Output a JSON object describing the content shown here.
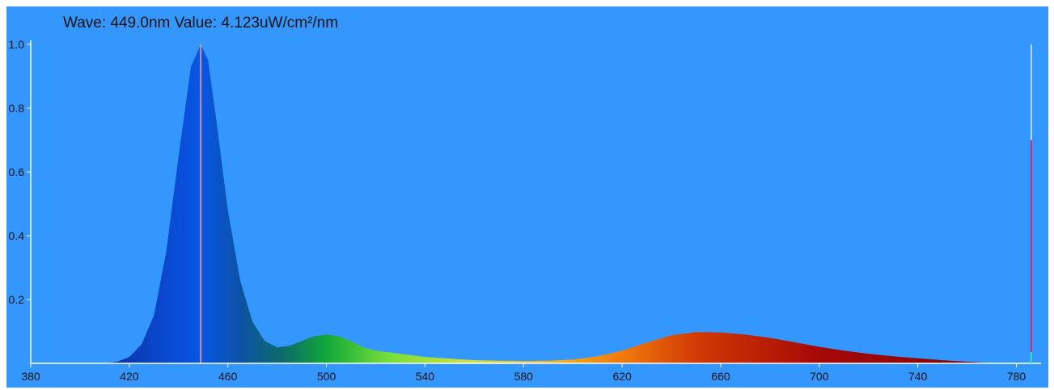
{
  "readout": {
    "wave_label": "Wave:",
    "wave_value": "449.0nm",
    "value_label": "Value:",
    "value_value": "4.123uW/cm²/nm"
  },
  "cursor": {
    "wavelength": 449
  },
  "marker": {
    "wavelength": 786,
    "level": 0.7
  },
  "colors": {
    "background": "#3497fd",
    "cursor": "#f4a98a",
    "marker_top": "#e6e9ee",
    "marker_bottom": "#d8266e"
  },
  "chart_data": {
    "type": "area",
    "title": "",
    "xlabel": "",
    "ylabel": "",
    "xlim": [
      380,
      790
    ],
    "ylim": [
      0,
      1.0
    ],
    "x_ticks": [
      380,
      420,
      460,
      500,
      540,
      580,
      620,
      660,
      700,
      740,
      780
    ],
    "y_ticks": [
      0.2,
      0.4,
      0.6,
      0.8,
      1.0
    ],
    "y_tick_labels": [
      "0.2",
      "0.4",
      "0.6",
      "0.8",
      "1.0"
    ],
    "grid": false,
    "legend": "none",
    "series": [
      {
        "x": [
          410,
          415,
          420,
          425,
          430,
          435,
          440,
          445,
          449,
          452,
          455,
          460,
          465,
          470,
          475,
          480,
          485,
          490,
          495,
          500,
          505,
          510,
          515,
          520,
          530,
          540,
          550,
          560,
          570,
          580,
          590,
          600,
          610,
          620,
          630,
          640,
          650,
          660,
          670,
          680,
          690,
          700,
          710,
          720,
          730,
          740,
          750,
          760,
          770
        ],
        "y": [
          0,
          0.005,
          0.02,
          0.06,
          0.15,
          0.35,
          0.65,
          0.93,
          1.0,
          0.95,
          0.78,
          0.48,
          0.26,
          0.13,
          0.07,
          0.05,
          0.055,
          0.07,
          0.085,
          0.09,
          0.085,
          0.07,
          0.05,
          0.04,
          0.03,
          0.02,
          0.015,
          0.01,
          0.008,
          0.007,
          0.008,
          0.012,
          0.022,
          0.04,
          0.065,
          0.088,
          0.098,
          0.097,
          0.09,
          0.08,
          0.066,
          0.052,
          0.04,
          0.03,
          0.022,
          0.016,
          0.01,
          0.005,
          0.001
        ]
      }
    ]
  }
}
